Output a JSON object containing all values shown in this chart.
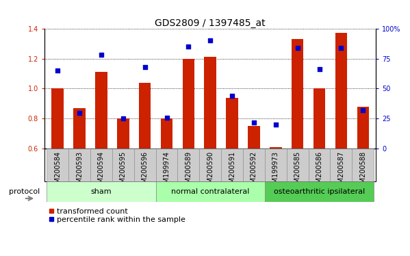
{
  "title": "GDS2809 / 1397485_at",
  "samples": [
    "GSM200584",
    "GSM200593",
    "GSM200594",
    "GSM200595",
    "GSM200596",
    "GSM199974",
    "GSM200589",
    "GSM200590",
    "GSM200591",
    "GSM200592",
    "GSM199973",
    "GSM200585",
    "GSM200586",
    "GSM200587",
    "GSM200588"
  ],
  "red_values": [
    1.0,
    0.87,
    1.11,
    0.8,
    1.04,
    0.8,
    1.2,
    1.21,
    0.94,
    0.75,
    0.61,
    1.33,
    1.0,
    1.37,
    0.88
  ],
  "blue_pct": [
    65,
    30,
    78,
    25,
    68,
    26,
    85,
    90,
    44,
    22,
    20,
    84,
    66,
    84,
    32
  ],
  "groups": [
    {
      "label": "sham",
      "start": 0,
      "end": 5,
      "color": "#ccffcc"
    },
    {
      "label": "normal contralateral",
      "start": 5,
      "end": 10,
      "color": "#aaffaa"
    },
    {
      "label": "osteoarthritic ipsilateral",
      "start": 10,
      "end": 15,
      "color": "#55cc55"
    }
  ],
  "ylim_left": [
    0.6,
    1.4
  ],
  "ylim_right": [
    0,
    100
  ],
  "left_yticks": [
    0.6,
    0.8,
    1.0,
    1.2,
    1.4
  ],
  "right_yticks": [
    0,
    25,
    50,
    75,
    100
  ],
  "right_yticklabels": [
    "0",
    "25",
    "50",
    "75",
    "100%"
  ],
  "bar_color": "#cc2200",
  "dot_color": "#0000cc",
  "bar_width": 0.55,
  "title_fontsize": 10,
  "tick_fontsize": 7,
  "legend_fontsize": 8,
  "protocol_label": "protocol",
  "cell_color": "#cccccc",
  "cell_border": "#888888"
}
